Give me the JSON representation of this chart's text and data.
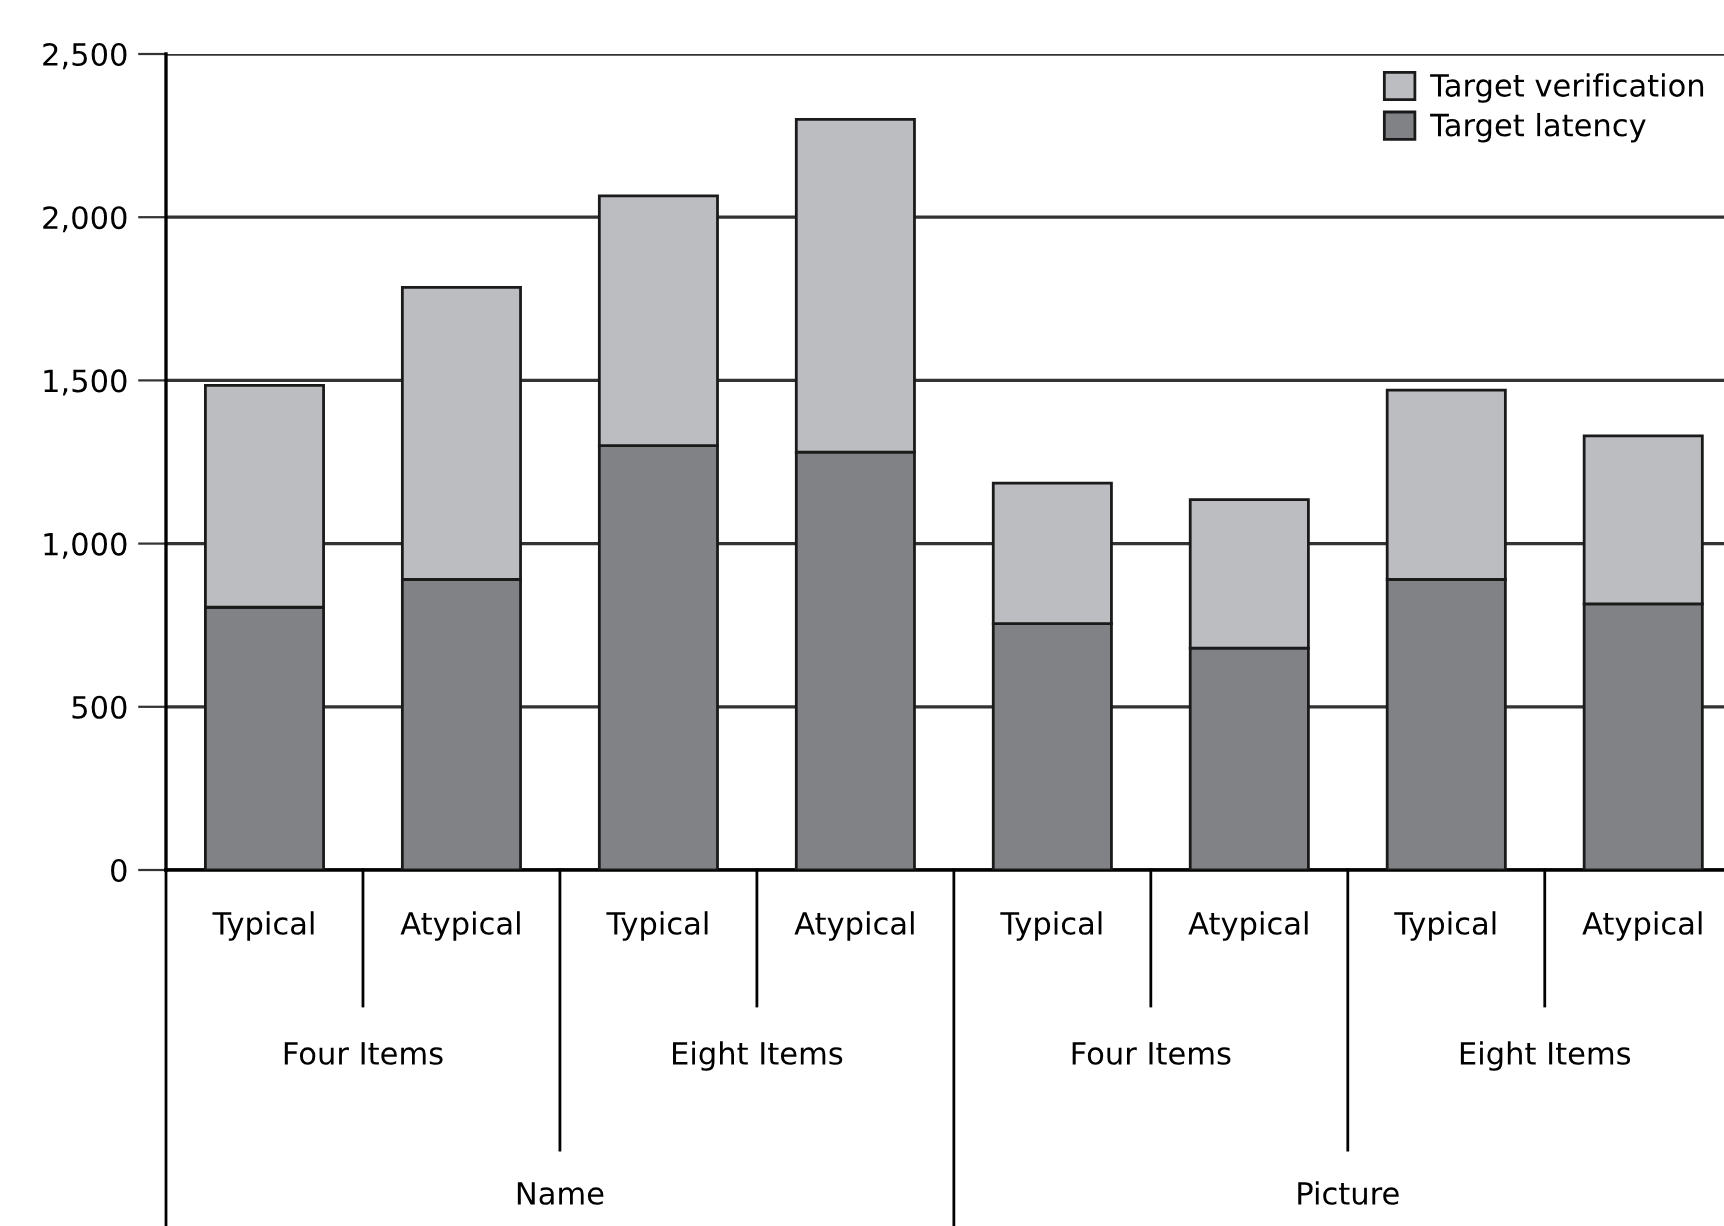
{
  "chart_data": {
    "type": "bar",
    "stacked": true,
    "categories": [
      "Typical",
      "Atypical",
      "Typical",
      "Atypical",
      "Typical",
      "Atypical",
      "Typical",
      "Atypical"
    ],
    "series": [
      {
        "name": "Target latency",
        "color": "#818286",
        "values": [
          805,
          890,
          1300,
          1280,
          755,
          680,
          890,
          815
        ]
      },
      {
        "name": "Target verification",
        "color": "#bcbdc1",
        "values": [
          680,
          895,
          765,
          1020,
          430,
          455,
          580,
          515
        ]
      }
    ],
    "annotations": [
      "Four Items",
      "Eight Items",
      "Four Items",
      "Eight Items",
      "Name",
      "Picture"
    ],
    "ylim": [
      0,
      2500
    ],
    "yticks": [
      {
        "value": 0,
        "label": "0"
      },
      {
        "value": 500,
        "label": "500"
      },
      {
        "value": 1000,
        "label": "1,000"
      },
      {
        "value": 1500,
        "label": "1,500"
      },
      {
        "value": 2000,
        "label": "2,000"
      },
      {
        "value": 2500,
        "label": "2,500"
      }
    ],
    "grid": "y",
    "legend": "top right"
  }
}
